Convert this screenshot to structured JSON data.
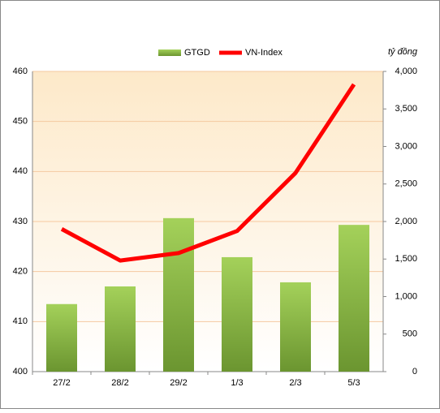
{
  "chart_data": {
    "type": "combo",
    "y2_label": "tỷ đồng",
    "categories": [
      "27/2",
      "28/2",
      "29/2",
      "1/3",
      "2/3",
      "5/3"
    ],
    "series": [
      {
        "name": "GTGD",
        "type": "bar",
        "axis": "y2",
        "color": "#8dbf45",
        "values": [
          900,
          1135,
          2045,
          1525,
          1190,
          1955
        ]
      },
      {
        "name": "VN-Index",
        "type": "line",
        "color": "#ff0000",
        "values": [
          428.5,
          422.2,
          423.7,
          428.1,
          439.7,
          457.4
        ]
      }
    ],
    "ylim": [
      400,
      460
    ],
    "yticks": [
      400,
      410,
      420,
      430,
      440,
      450,
      460
    ],
    "y2lim": [
      0,
      4000
    ],
    "y2ticks": [
      0,
      500,
      {
        "value": 1000,
        "label": "1,000"
      },
      {
        "value": 1500,
        "label": "1,500"
      },
      {
        "value": 2000,
        "label": "2,000"
      },
      {
        "value": 2500,
        "label": "2,500"
      },
      {
        "value": 3000,
        "label": "3,000"
      },
      {
        "value": 3500,
        "label": "3,500"
      },
      {
        "value": 4000,
        "label": "4,000"
      }
    ],
    "grid": true
  }
}
